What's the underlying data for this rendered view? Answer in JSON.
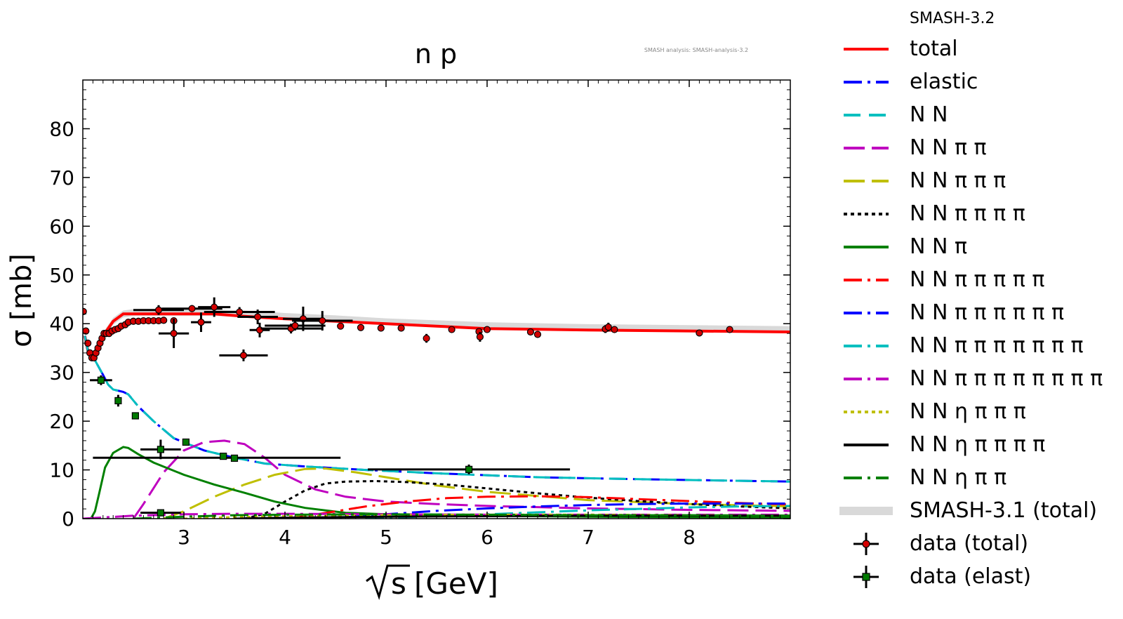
{
  "header": {
    "version": "SMASH-3.2",
    "analysis_note": "SMASH analysis: SMASH-analysis-3.2"
  },
  "chart_data": {
    "type": "line",
    "title": "n p",
    "xlabel": "[GeV]",
    "xlabel_symbol": "√s",
    "ylabel": "σ [mb]",
    "xlim": [
      2.0,
      9.0
    ],
    "ylim": [
      0,
      90
    ],
    "x_ticks": [
      "3",
      "4",
      "5",
      "6",
      "7",
      "8"
    ],
    "y_ticks": [
      "0",
      "10",
      "20",
      "30",
      "40",
      "50",
      "60",
      "70",
      "80"
    ],
    "legend_position": "outside-right",
    "grid": false,
    "series": [
      {
        "name": "total",
        "color": "#ff0000",
        "style": "solid",
        "width": 4,
        "x": [
          2.02,
          2.05,
          2.08,
          2.12,
          2.16,
          2.2,
          2.3,
          2.4,
          2.5,
          2.7,
          3.0,
          3.3,
          3.6,
          4.0,
          4.5,
          5.0,
          5.5,
          6.0,
          7.0,
          8.0,
          9.0
        ],
        "y": [
          37.5,
          34.5,
          33.2,
          34,
          35.5,
          37.5,
          40.5,
          42,
          42,
          42,
          42,
          42,
          41.5,
          41,
          40.5,
          40,
          39.5,
          39,
          38.7,
          38.5,
          38.3
        ]
      },
      {
        "name": "elastic",
        "color": "#0000ff",
        "style": "dashdot",
        "width": 3,
        "x": [
          2.02,
          2.05,
          2.08,
          2.12,
          2.16,
          2.2,
          2.25,
          2.3,
          2.4,
          2.45,
          2.55,
          2.7,
          2.9,
          3.2,
          3.5,
          3.8,
          4.2,
          4.8,
          5.5,
          6.5,
          7.5,
          9.0
        ],
        "y": [
          37.5,
          34.5,
          33,
          32.5,
          31,
          29.5,
          27.5,
          26.5,
          26,
          25.5,
          23,
          20,
          16.5,
          14,
          12.5,
          11.3,
          10.7,
          10,
          9.3,
          8.5,
          8.1,
          7.6
        ]
      },
      {
        "name": "N N",
        "color": "#00bfbf",
        "style": "dash",
        "width": 3,
        "x": [
          2.02,
          2.05,
          2.08,
          2.12,
          2.16,
          2.2,
          2.25,
          2.3,
          2.4,
          2.45,
          2.55,
          2.7,
          2.9,
          3.2,
          3.5,
          3.8,
          4.2,
          4.8,
          5.5,
          6.5,
          7.5,
          9.0
        ],
        "y": [
          37.5,
          34.5,
          33,
          32.5,
          31,
          29.5,
          27.5,
          26.5,
          26,
          25.5,
          23,
          20,
          16.5,
          14,
          12.5,
          11.3,
          10.7,
          10,
          9.3,
          8.5,
          8.1,
          7.6
        ]
      },
      {
        "name": "N N π π",
        "color": "#bf00bf",
        "style": "longdash",
        "width": 3,
        "x": [
          2.5,
          2.6,
          2.8,
          3.0,
          3.2,
          3.4,
          3.6,
          3.8,
          4.0,
          4.3,
          4.6,
          5.0,
          5.5,
          6.0,
          7.0,
          8.0,
          9.0
        ],
        "y": [
          0,
          3,
          9.5,
          14,
          15.7,
          16,
          15.3,
          12.5,
          9,
          6,
          4.5,
          3.5,
          3,
          2.6,
          2.1,
          1.8,
          1.6
        ]
      },
      {
        "name": "N N π π π",
        "color": "#bfbf00",
        "style": "longdash",
        "width": 3,
        "x": [
          2.8,
          3.0,
          3.3,
          3.6,
          3.9,
          4.2,
          4.4,
          4.7,
          5.0,
          5.5,
          6.0,
          7.0,
          8.0,
          9.0
        ],
        "y": [
          0,
          1.5,
          4.5,
          7,
          9,
          10.2,
          10.3,
          9.5,
          8.5,
          6.8,
          5.5,
          3.8,
          3,
          2.5
        ]
      },
      {
        "name": "N N π π π π",
        "color": "#000000",
        "style": "dot",
        "width": 3,
        "x": [
          3.6,
          3.8,
          4.0,
          4.2,
          4.4,
          4.6,
          4.9,
          5.2,
          5.6,
          6.0,
          6.5,
          7.0,
          7.5,
          8.0,
          8.5,
          9.0
        ],
        "y": [
          0,
          1,
          3.5,
          5.8,
          7.2,
          7.6,
          7.7,
          7.5,
          7,
          6.2,
          5.2,
          4.3,
          3.6,
          3,
          2.5,
          2.1
        ]
      },
      {
        "name": "N N π",
        "color": "#008000",
        "style": "solid",
        "width": 3,
        "x": [
          2.02,
          2.08,
          2.12,
          2.16,
          2.22,
          2.3,
          2.4,
          2.45,
          2.55,
          2.7,
          3.0,
          3.3,
          3.6,
          3.9,
          4.2,
          4.6,
          5.0,
          6.0,
          7.0,
          8.0,
          9.0
        ],
        "y": [
          0,
          0,
          1.5,
          5,
          10.5,
          13.5,
          14.7,
          14.5,
          13.2,
          11.5,
          9,
          7,
          5.3,
          3.5,
          2.2,
          1.2,
          0.9,
          0.6,
          0.4,
          0.3,
          0.25
        ]
      },
      {
        "name": "N N π π π π π",
        "color": "#ff0000",
        "style": "dashdot",
        "width": 3,
        "x": [
          4.0,
          4.2,
          4.5,
          4.8,
          5.2,
          5.6,
          6.0,
          6.5,
          7.0,
          7.5,
          8.0,
          8.5,
          9.0
        ],
        "y": [
          0,
          0.5,
          1.5,
          2.5,
          3.5,
          4.2,
          4.5,
          4.6,
          4.4,
          4,
          3.6,
          3.2,
          2.9
        ]
      },
      {
        "name": "N N π π π π π π",
        "color": "#0000ff",
        "style": "dashdot",
        "width": 3,
        "x": [
          4.3,
          4.6,
          5.0,
          5.5,
          6.0,
          6.5,
          7.0,
          7.5,
          8.0,
          8.5,
          9.0
        ],
        "y": [
          0,
          0.3,
          0.9,
          1.6,
          2.1,
          2.5,
          2.8,
          3,
          3.1,
          3.1,
          3.1
        ]
      },
      {
        "name": "N N π π π π π π π",
        "color": "#00bfbf",
        "style": "dashdot",
        "width": 3,
        "x": [
          4.8,
          5.2,
          5.6,
          6.0,
          6.5,
          7.0,
          7.5,
          8.0,
          8.5,
          9.0
        ],
        "y": [
          0,
          0.3,
          0.6,
          0.9,
          1.3,
          1.7,
          2,
          2.3,
          2.5,
          2.6
        ]
      },
      {
        "name": "N N π π π π π π π π",
        "color": "#bf00bf",
        "style": "dashdot",
        "width": 3,
        "x": [
          2.0,
          2.5,
          3.0,
          3.5,
          4.0,
          5.0,
          6.0,
          7.0,
          8.0,
          9.0
        ],
        "y": [
          0,
          0.6,
          0.9,
          1.0,
          1.0,
          0.9,
          0.8,
          0.8,
          0.8,
          0.8
        ]
      },
      {
        "name": "N N η π π π",
        "color": "#bfbf00",
        "style": "dot",
        "width": 3,
        "x": [
          3.0,
          3.5,
          4.0,
          5.0,
          6.0,
          7.0,
          8.0,
          9.0
        ],
        "y": [
          0,
          0.3,
          0.5,
          0.7,
          0.8,
          0.8,
          0.7,
          0.6
        ]
      },
      {
        "name": "N N η π π π π",
        "color": "#000000",
        "style": "solid",
        "width": 3,
        "x": [
          3.5,
          4.0,
          5.0,
          6.0,
          7.0,
          8.0,
          9.0
        ],
        "y": [
          0,
          0.2,
          0.4,
          0.5,
          0.6,
          0.6,
          0.6
        ]
      },
      {
        "name": "N N η π π",
        "color": "#008000",
        "style": "dashdot",
        "width": 3,
        "x": [
          2.5,
          3.0,
          3.5,
          4.0,
          5.0,
          6.0,
          7.0,
          8.0,
          9.0
        ],
        "y": [
          0,
          0.4,
          0.7,
          0.8,
          0.9,
          0.8,
          0.7,
          0.7,
          0.6
        ]
      }
    ],
    "reference_band": {
      "name": "SMASH-3.1 (total)",
      "color": "#d9d9d9",
      "x": [
        2.02,
        2.05,
        2.08,
        2.12,
        2.16,
        2.2,
        2.3,
        2.4,
        2.5,
        2.7,
        3.0,
        3.3,
        3.6,
        4.0,
        4.5,
        5.0,
        5.5,
        6.0,
        7.0,
        8.0,
        9.0
      ],
      "y": [
        37.5,
        34.5,
        33.2,
        34,
        35.5,
        37.5,
        40.5,
        42,
        42.3,
        42.3,
        42.3,
        42.3,
        42,
        41.5,
        41,
        40.4,
        40,
        39.6,
        39.2,
        39,
        38.8
      ]
    },
    "data_total": {
      "name": "data (total)",
      "color": "#d40000",
      "x": [
        2.005,
        2.03,
        2.05,
        2.07,
        2.09,
        2.11,
        2.13,
        2.15,
        2.17,
        2.19,
        2.21,
        2.23,
        2.26,
        2.29,
        2.32,
        2.35,
        2.38,
        2.42,
        2.45,
        2.5,
        2.55,
        2.6,
        2.65,
        2.7,
        2.75,
        2.8,
        2.9,
        2.75,
        2.9,
        3.08,
        3.17,
        3.3,
        3.55,
        3.73,
        3.75,
        3.59,
        4.06,
        4.1,
        4.18,
        4.37,
        4.55,
        4.75,
        4.95,
        5.15,
        5.4,
        5.65,
        5.92,
        5.93,
        6.0,
        6.43,
        6.5,
        7.17,
        7.2,
        7.26,
        8.1,
        8.4
      ],
      "y": [
        42.5,
        38.5,
        36,
        34,
        33,
        33,
        34,
        35,
        36,
        37,
        38,
        38,
        38,
        38.5,
        38.8,
        39,
        39.5,
        39.8,
        40.3,
        40.5,
        40.5,
        40.6,
        40.6,
        40.6,
        40.6,
        40.7,
        40.6,
        42.8,
        38,
        43.1,
        40.3,
        43.4,
        42.4,
        41.4,
        38.7,
        33.5,
        39,
        39.6,
        41,
        40.6,
        39.5,
        39.2,
        39.1,
        39.1,
        37,
        38.8,
        38.4,
        37.3,
        38.8,
        38.3,
        37.8,
        38.9,
        39.3,
        38.8,
        38.1,
        38.8
      ],
      "xerr": [
        0,
        0,
        0,
        0,
        0,
        0,
        0,
        0,
        0,
        0,
        0,
        0,
        0,
        0,
        0,
        0,
        0,
        0,
        0,
        0,
        0,
        0,
        0,
        0,
        0,
        0,
        0,
        0.25,
        0.15,
        0.3,
        0.1,
        0.16,
        0.35,
        0.2,
        0.1,
        0.24,
        0.3,
        0.3,
        0.2,
        0.3,
        0,
        0,
        0,
        0,
        0,
        0,
        0,
        0,
        0,
        0,
        0,
        0,
        0,
        0,
        0,
        0
      ],
      "yerr": [
        0,
        0,
        0,
        0,
        0,
        0,
        0,
        0,
        0,
        0,
        0,
        0,
        0,
        0,
        0,
        0,
        0,
        0,
        0,
        0.3,
        0,
        0,
        0,
        0,
        0,
        0,
        0,
        1,
        3,
        0.7,
        2,
        2,
        1,
        1.5,
        1.5,
        1.2,
        1,
        1,
        2.5,
        2,
        0,
        0,
        0,
        0,
        0.9,
        0,
        0,
        1,
        0,
        0,
        0,
        0.8,
        0.9,
        0,
        0.7,
        0
      ]
    },
    "data_elast": {
      "name": "data (elast)",
      "color": "#007a00",
      "x": [
        2.18,
        2.35,
        2.52,
        2.77,
        3.02,
        3.39,
        3.5,
        2.77,
        5.82
      ],
      "y": [
        28.4,
        24.2,
        21.1,
        14.2,
        15.7,
        12.8,
        12.4,
        1.2,
        10.1
      ],
      "xerr": [
        0.11,
        0,
        0,
        0.2,
        0,
        0,
        0,
        0.2,
        1.0
      ],
      "yerr": [
        1,
        1.2,
        0.7,
        2,
        0.6,
        0.3,
        0.3,
        0.3,
        1
      ],
      "wide_bar": {
        "x0": 2.1,
        "x1": 4.55,
        "y": 12.5
      }
    }
  },
  "legend": {
    "header": "SMASH-3.2",
    "items": [
      {
        "label": "total",
        "color": "#ff0000",
        "style": "solid"
      },
      {
        "label": "elastic",
        "color": "#0000ff",
        "style": "dashdot"
      },
      {
        "label": "N N",
        "color": "#00bfbf",
        "style": "dash"
      },
      {
        "label": "N N π π",
        "color": "#bf00bf",
        "style": "longdash"
      },
      {
        "label": "N N π π π",
        "color": "#bfbf00",
        "style": "longdash"
      },
      {
        "label": "N N π π π π",
        "color": "#000000",
        "style": "dot"
      },
      {
        "label": "N N π",
        "color": "#008000",
        "style": "solid"
      },
      {
        "label": "N N π π π π π",
        "color": "#ff0000",
        "style": "dashdot"
      },
      {
        "label": "N N π π π π π π",
        "color": "#0000ff",
        "style": "dashdot"
      },
      {
        "label": "N N π π π π π π π",
        "color": "#00bfbf",
        "style": "dashdot"
      },
      {
        "label": "N N π π π π π π π π",
        "color": "#bf00bf",
        "style": "dashdot"
      },
      {
        "label": "N N η π π π",
        "color": "#bfbf00",
        "style": "dot"
      },
      {
        "label": "N N η π π π π",
        "color": "#000000",
        "style": "solid"
      },
      {
        "label": "N N η π π",
        "color": "#008000",
        "style": "dashdot"
      },
      {
        "label": "SMASH-3.1 (total)",
        "color": "#d9d9d9",
        "style": "band"
      },
      {
        "label": "data (total)",
        "color": "#d40000",
        "style": "marker"
      },
      {
        "label": "data (elast)",
        "color": "#007a00",
        "style": "marker-square"
      }
    ]
  }
}
